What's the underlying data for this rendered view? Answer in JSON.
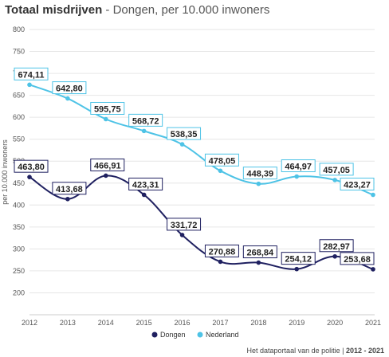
{
  "header": {
    "title_main": "Totaal misdrijven",
    "title_sub": " - Dongen, per 10.000 inwoners"
  },
  "footer": {
    "credit_text": "Het dataportaal van de politie | ",
    "credit_years": "2012 - 2021"
  },
  "chart_data": {
    "type": "line",
    "x": [
      "2012",
      "2013",
      "2014",
      "2015",
      "2016",
      "2017",
      "2018",
      "2019",
      "2020",
      "2021"
    ],
    "ylabel": "per 10.000 inwoners",
    "ylim": [
      150,
      800
    ],
    "yticks": [
      "200",
      "250",
      "300",
      "350",
      "400",
      "450",
      "500",
      "550",
      "600",
      "650",
      "700",
      "750",
      "800"
    ],
    "grid": true,
    "legend_position": "bottom-center",
    "series": [
      {
        "name": "Dongen",
        "color": "#1f2060",
        "values": [
          463.8,
          413.68,
          466.91,
          423.31,
          331.72,
          270.88,
          268.84,
          254.12,
          282.97,
          253.68
        ],
        "labels": [
          "463,80",
          "413,68",
          "466,91",
          "423,31",
          "331,72",
          "270,88",
          "268,84",
          "254,12",
          "282,97",
          "253,68"
        ]
      },
      {
        "name": "Nederland",
        "color": "#4ec3e6",
        "values": [
          674.11,
          642.8,
          595.75,
          568.72,
          538.35,
          478.05,
          448.39,
          464.97,
          457.05,
          423.27
        ],
        "labels": [
          "674,11",
          "642,80",
          "595,75",
          "568,72",
          "538,35",
          "478,05",
          "448,39",
          "464,97",
          "457,05",
          "423,27"
        ]
      }
    ]
  }
}
